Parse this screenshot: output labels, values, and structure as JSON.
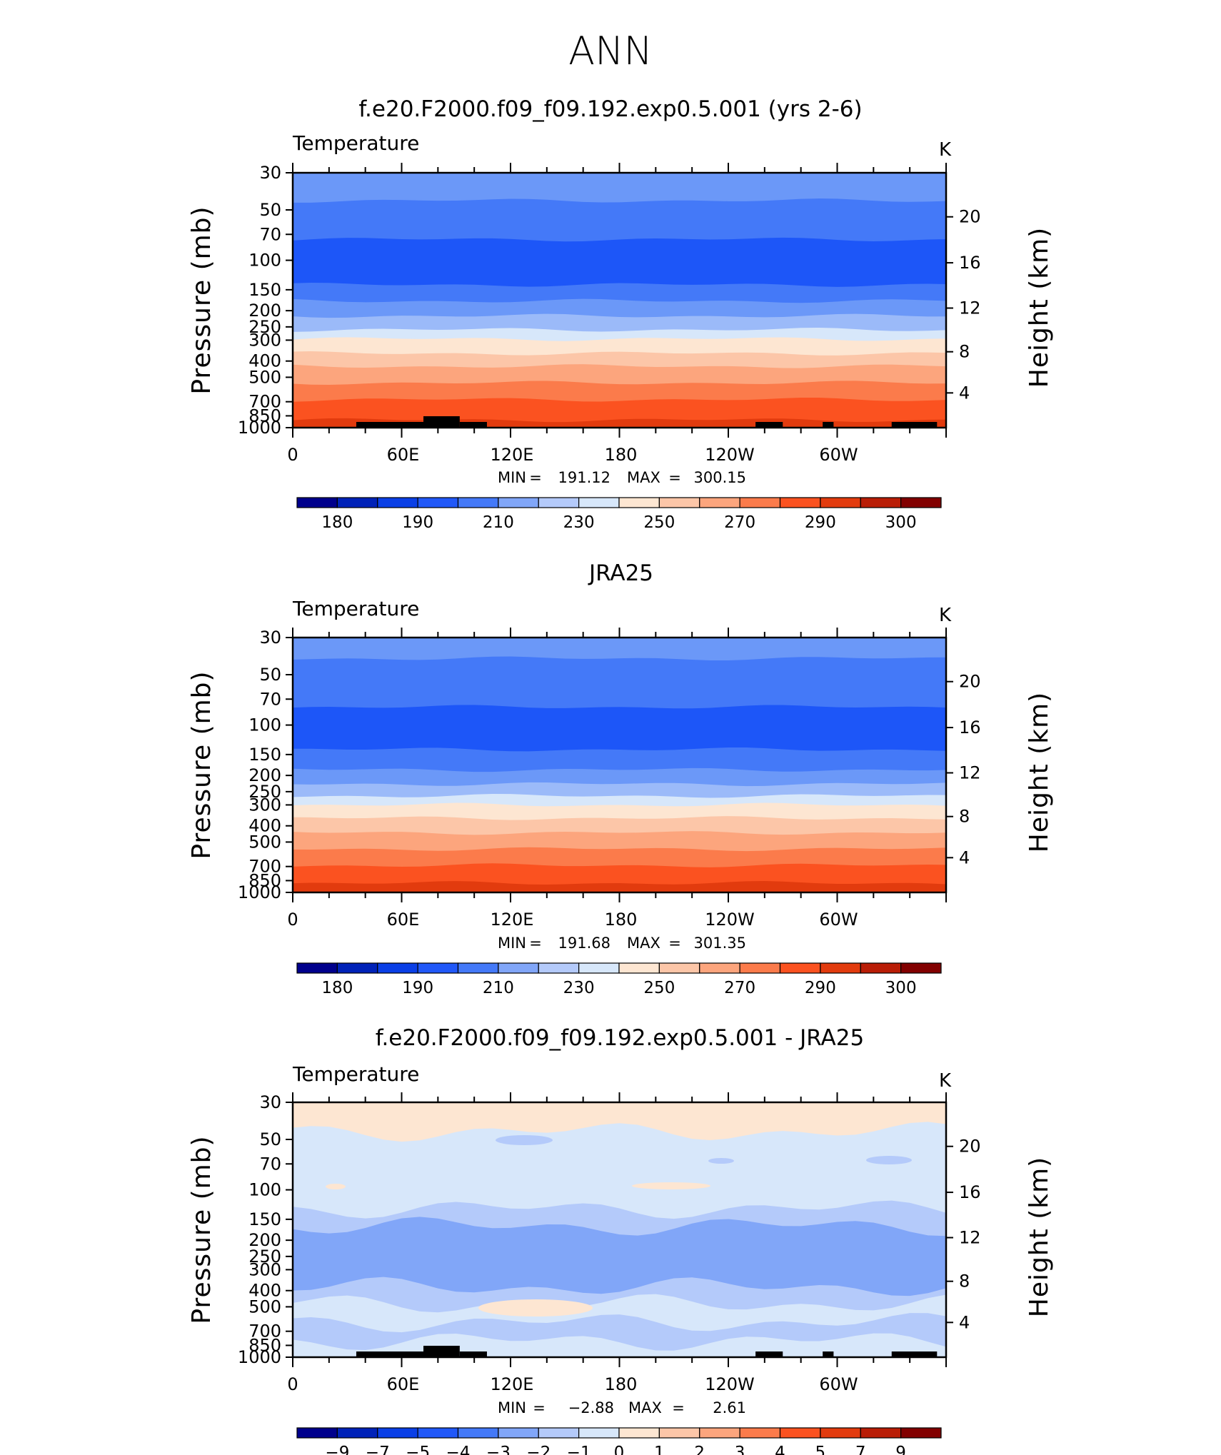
{
  "page_title": "ANN",
  "chart_data": [
    {
      "type": "contour",
      "title": "f.e20.F2000.f09_f09.192.exp0.5.001 (yrs 2-6)",
      "variable": "Temperature",
      "units": "K",
      "ylabel": "Pressure (mb)",
      "ylabel_right": "Height (km)",
      "y_ticks": [
        "30",
        "50",
        "70",
        "100",
        "150",
        "200",
        "250",
        "300",
        "400",
        "500",
        "700",
        "850",
        "1000"
      ],
      "y_ticks_right": [
        "20",
        "16",
        "12",
        "8",
        "4"
      ],
      "x_ticks": [
        "0",
        "60E",
        "120E",
        "180",
        "120W",
        "60W"
      ],
      "min_label": "MIN",
      "max_label": "MAX",
      "min": "191.12",
      "max": "300.15",
      "colorbar_labels": [
        "180",
        "190",
        "210",
        "230",
        "250",
        "270",
        "290",
        "300"
      ],
      "levels": [
        {
          "p_top": 30,
          "p_bot": 44,
          "color": "#6b98f8"
        },
        {
          "p_top": 44,
          "p_bot": 75,
          "color": "#4479f8"
        },
        {
          "p_top": 75,
          "p_bot": 140,
          "color": "#1d56f8"
        },
        {
          "p_top": 140,
          "p_bot": 175,
          "color": "#4479f8"
        },
        {
          "p_top": 175,
          "p_bot": 215,
          "color": "#6b98f8"
        },
        {
          "p_top": 215,
          "p_bot": 260,
          "color": "#9bbaf9"
        },
        {
          "p_top": 260,
          "p_bot": 295,
          "color": "#d7e7fa"
        },
        {
          "p_top": 295,
          "p_bot": 360,
          "color": "#fde6d2"
        },
        {
          "p_top": 360,
          "p_bot": 430,
          "color": "#fcc6a8"
        },
        {
          "p_top": 430,
          "p_bot": 540,
          "color": "#fca57d"
        },
        {
          "p_top": 540,
          "p_bot": 680,
          "color": "#fb7b4b"
        },
        {
          "p_top": 680,
          "p_bot": 900,
          "color": "#fb5220"
        },
        {
          "p_top": 900,
          "p_bot": 1000,
          "color": "#e23b0e"
        }
      ]
    },
    {
      "type": "contour",
      "title": "JRA25",
      "variable": "Temperature",
      "units": "K",
      "ylabel": "Pressure (mb)",
      "ylabel_right": "Height (km)",
      "y_ticks": [
        "30",
        "50",
        "70",
        "100",
        "150",
        "200",
        "250",
        "300",
        "400",
        "500",
        "700",
        "850",
        "1000"
      ],
      "y_ticks_right": [
        "20",
        "16",
        "12",
        "8",
        "4"
      ],
      "x_ticks": [
        "0",
        "60E",
        "120E",
        "180",
        "120W",
        "60W"
      ],
      "min_label": "MIN",
      "max_label": "MAX",
      "min": "191.68",
      "max": "301.35",
      "colorbar_labels": [
        "180",
        "190",
        "210",
        "230",
        "250",
        "270",
        "290",
        "300"
      ],
      "levels": [
        {
          "p_top": 30,
          "p_bot": 40,
          "color": "#6b98f8"
        },
        {
          "p_top": 40,
          "p_bot": 78,
          "color": "#4479f8"
        },
        {
          "p_top": 78,
          "p_bot": 140,
          "color": "#1d56f8"
        },
        {
          "p_top": 140,
          "p_bot": 185,
          "color": "#4479f8"
        },
        {
          "p_top": 185,
          "p_bot": 225,
          "color": "#6b98f8"
        },
        {
          "p_top": 225,
          "p_bot": 265,
          "color": "#9bbaf9"
        },
        {
          "p_top": 265,
          "p_bot": 300,
          "color": "#d7e7fa"
        },
        {
          "p_top": 300,
          "p_bot": 360,
          "color": "#fde6d2"
        },
        {
          "p_top": 360,
          "p_bot": 440,
          "color": "#fcc6a8"
        },
        {
          "p_top": 440,
          "p_bot": 550,
          "color": "#fca57d"
        },
        {
          "p_top": 550,
          "p_bot": 690,
          "color": "#fb7b4b"
        },
        {
          "p_top": 690,
          "p_bot": 880,
          "color": "#fb5220"
        },
        {
          "p_top": 880,
          "p_bot": 1000,
          "color": "#e23b0e"
        }
      ]
    },
    {
      "type": "contour",
      "title": "f.e20.F2000.f09_f09.192.exp0.5.001 - JRA25",
      "variable": "Temperature",
      "units": "K",
      "ylabel": "Pressure (mb)",
      "ylabel_right": "Height (km)",
      "y_ticks": [
        "30",
        "50",
        "70",
        "100",
        "150",
        "200",
        "250",
        "300",
        "400",
        "500",
        "700",
        "850",
        "1000"
      ],
      "y_ticks_right": [
        "20",
        "16",
        "12",
        "8",
        "4"
      ],
      "x_ticks": [
        "0",
        "60E",
        "120E",
        "180",
        "120W",
        "60W"
      ],
      "min_label": "MIN",
      "max_label": "MAX",
      "min": "−2.88",
      "max": "2.61",
      "colorbar_labels": [
        "−9",
        "−7",
        "−5",
        "−4",
        "−3",
        "−2",
        "−1",
        "0",
        "1",
        "2",
        "3",
        "4",
        "5",
        "7",
        "9"
      ],
      "levels": [
        {
          "p_top": 30,
          "p_bot": 45,
          "color": "#fde6d2"
        },
        {
          "p_top": 45,
          "p_bot": 130,
          "color": "#d7e7fa"
        },
        {
          "p_top": 130,
          "p_bot": 165,
          "color": "#b4cafa"
        },
        {
          "p_top": 165,
          "p_bot": 380,
          "color": "#81a6f8"
        },
        {
          "p_top": 380,
          "p_bot": 480,
          "color": "#b4cafa"
        },
        {
          "p_top": 480,
          "p_bot": 620,
          "color": "#d7e7fa"
        },
        {
          "p_top": 620,
          "p_bot": 800,
          "color": "#b4cafa"
        },
        {
          "p_top": 800,
          "p_bot": 1000,
          "color": "#d7e7fa"
        }
      ]
    }
  ],
  "colorbar_colors": [
    "#00008c",
    "#0022b8",
    "#0a3fe6",
    "#2158f8",
    "#4479f8",
    "#81a6f8",
    "#b4cafa",
    "#d7e7fa",
    "#fde6d2",
    "#fcc6a8",
    "#fca57d",
    "#fb7b4b",
    "#fb5220",
    "#e23b0e",
    "#b91d06",
    "#820000"
  ]
}
